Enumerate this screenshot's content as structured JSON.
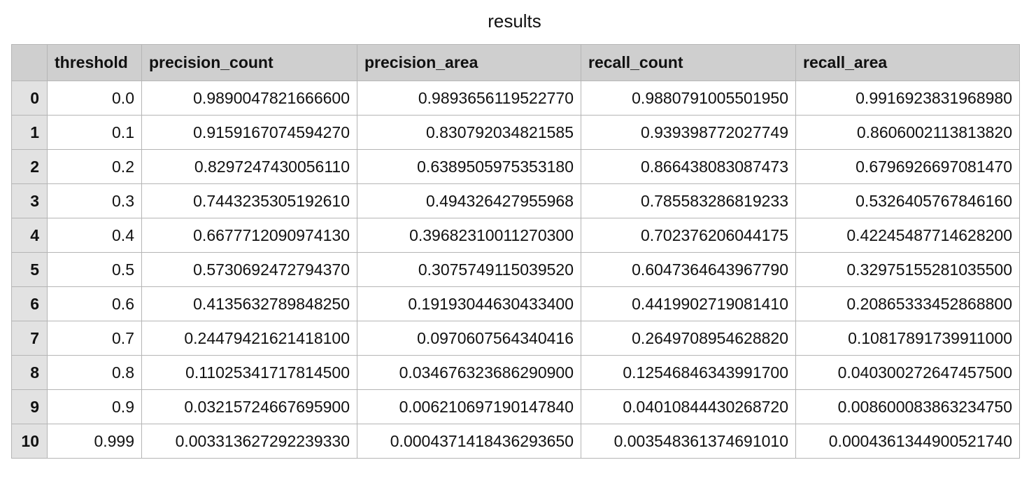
{
  "title": "results",
  "table": {
    "columns": [
      "",
      "threshold",
      "precision_count",
      "precision_area",
      "recall_count",
      "recall_area"
    ],
    "rows": [
      [
        "0",
        "0.0",
        "0.9890047821666600",
        "0.9893656119522770",
        "0.9880791005501950",
        "0.9916923831968980"
      ],
      [
        "1",
        "0.1",
        "0.9159167074594270",
        "0.830792034821585",
        "0.939398772027749",
        "0.8606002113813820"
      ],
      [
        "2",
        "0.2",
        "0.8297247430056110",
        "0.6389505975353180",
        "0.866438083087473",
        "0.6796926697081470"
      ],
      [
        "3",
        "0.3",
        "0.7443235305192610",
        "0.494326427955968",
        "0.785583286819233",
        "0.5326405767846160"
      ],
      [
        "4",
        "0.4",
        "0.6677712090974130",
        "0.39682310011270300",
        "0.702376206044175",
        "0.42245487714628200"
      ],
      [
        "5",
        "0.5",
        "0.5730692472794370",
        "0.3075749115039520",
        "0.6047364643967790",
        "0.32975155281035500"
      ],
      [
        "6",
        "0.6",
        "0.4135632789848250",
        "0.19193044630433400",
        "0.4419902719081410",
        "0.20865333452868800"
      ],
      [
        "7",
        "0.7",
        "0.24479421621418100",
        "0.0970607564340416",
        "0.2649708954628820",
        "0.10817891739911000"
      ],
      [
        "8",
        "0.8",
        "0.11025341717814500",
        "0.034676323686290900",
        "0.12546846343991700",
        "0.040300272647457500"
      ],
      [
        "9",
        "0.9",
        "0.03215724667695900",
        "0.006210697190147840",
        "0.04010844430268720",
        "0.008600083863234750"
      ],
      [
        "10",
        "0.999",
        "0.003313627292239330",
        "0.0004371418436293650",
        "0.003548361374691010",
        "0.0004361344900521740"
      ]
    ]
  }
}
